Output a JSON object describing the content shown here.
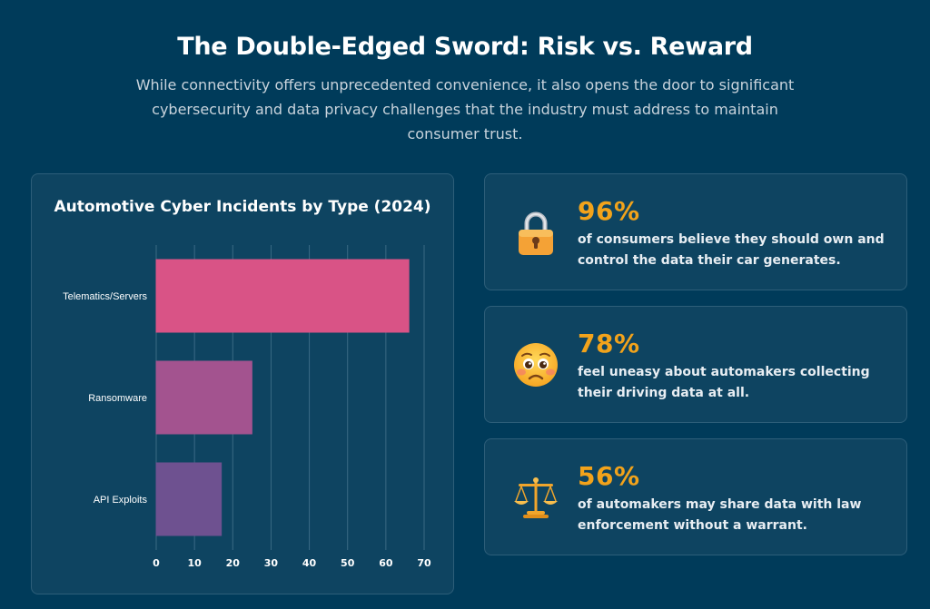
{
  "header": {
    "title": "The Double-Edged Sword: Risk vs. Reward",
    "subtitle": "While connectivity offers unprecedented convenience, it also opens the door to significant cybersecurity and data privacy challenges that the industry must address to maintain consumer trust."
  },
  "chart_data": {
    "type": "bar",
    "orientation": "horizontal",
    "title": "Automotive Cyber Incidents by Type (2024)",
    "categories": [
      "Telematics/Servers",
      "Ransomware",
      "API Exploits"
    ],
    "values": [
      66,
      25,
      17
    ],
    "xlim": [
      0,
      70
    ],
    "x_ticks": [
      "0",
      "10",
      "20",
      "30",
      "40",
      "50",
      "60",
      "70"
    ],
    "grid": true,
    "legend": "none",
    "colors": [
      "#D95386",
      "#A3538F",
      "#6E5190"
    ]
  },
  "stats": [
    {
      "icon": "lock-icon",
      "value": "96%",
      "text": "of consumers believe they should own and control the data their car generates."
    },
    {
      "icon": "worried-face-icon",
      "value": "78%",
      "text": "feel uneasy about automakers collecting their driving data at all."
    },
    {
      "icon": "balance-scale-icon",
      "value": "56%",
      "text": "of automakers may share data with law enforcement without a warrant."
    }
  ],
  "colors": {
    "background": "#003B5A",
    "card": "#0E4461",
    "accent": "#F2A31B"
  }
}
